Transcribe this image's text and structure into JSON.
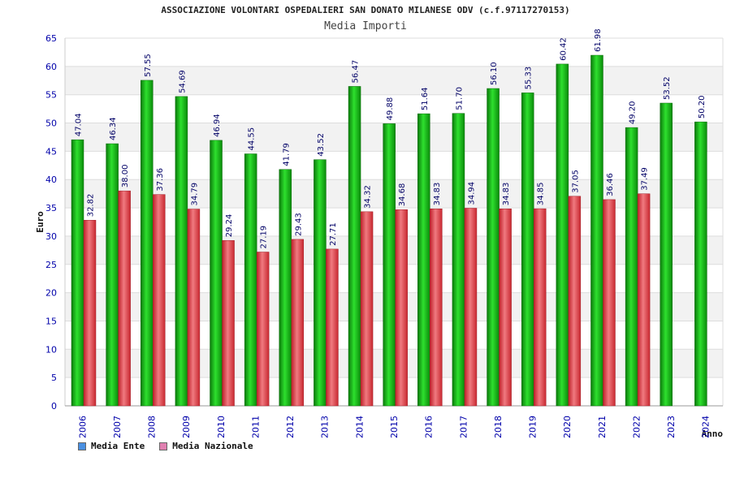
{
  "chart_data": {
    "type": "bar",
    "title": "ASSOCIAZIONE VOLONTARI OSPEDALIERI SAN DONATO MILANESE ODV (c.f.97117270153)",
    "subtitle": "Media Importi",
    "xlabel": "Anno",
    "ylabel": "Euro",
    "ylim": [
      0,
      65
    ],
    "yticks": [
      0,
      5,
      10,
      15,
      20,
      25,
      30,
      35,
      40,
      45,
      50,
      55,
      60,
      65
    ],
    "categories": [
      "2006",
      "2007",
      "2008",
      "2009",
      "2010",
      "2011",
      "2012",
      "2013",
      "2014",
      "2015",
      "2016",
      "2017",
      "2018",
      "2019",
      "2020",
      "2021",
      "2022",
      "2023",
      "2024"
    ],
    "series": [
      {
        "name": "Media Ente",
        "values": [
          47.04,
          46.34,
          57.55,
          54.69,
          46.94,
          44.55,
          41.79,
          43.52,
          56.47,
          49.88,
          51.64,
          51.7,
          56.1,
          55.33,
          60.42,
          61.98,
          49.2,
          53.52,
          50.2
        ],
        "labels": [
          "47.04",
          "46.34",
          "57.55",
          "54.69",
          "46.94",
          "44.55",
          "41.79",
          "43.52",
          "56.47",
          "49.88",
          "51.64",
          "51.70",
          "56.10",
          "55.33",
          "60.42",
          "61.98",
          "49.20",
          "53.52",
          "50.20"
        ]
      },
      {
        "name": "Media Nazionale",
        "values": [
          32.82,
          38.0,
          37.36,
          34.79,
          29.24,
          27.19,
          29.43,
          27.71,
          34.32,
          34.68,
          34.83,
          34.94,
          34.83,
          34.85,
          37.05,
          36.46,
          37.49,
          null,
          null
        ],
        "labels": [
          "32.82",
          "38.00",
          "37.36",
          "34.79",
          "29.24",
          "27.19",
          "29.43",
          "27.71",
          "34.32",
          "34.68",
          "34.83",
          "34.94",
          "34.83",
          "34.85",
          "37.05",
          "36.46",
          "37.49",
          null,
          null
        ]
      }
    ],
    "grid": true,
    "legend_position": "bottom-left",
    "colors": {
      "ente": "#13b613",
      "nazionale": "#e0404a",
      "legend_ente": "#4a90e2",
      "legend_nazionale": "#e080b0",
      "band": "#f2f2f2",
      "tick_text": "#0000aa",
      "value_text": "#000066"
    }
  }
}
